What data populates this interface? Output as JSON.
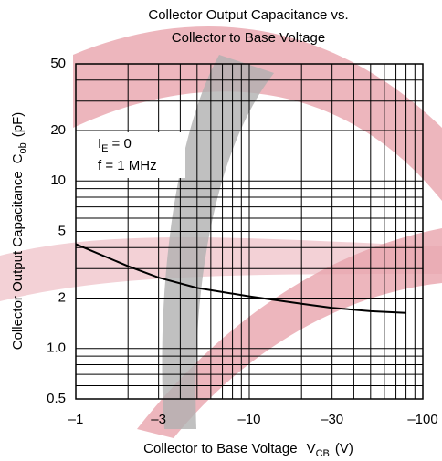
{
  "chart_data": {
    "type": "line",
    "title_lines": [
      "Collector Output Capacitance vs.",
      "Collector to Base Voltage"
    ],
    "x_label": {
      "main": "Collector to Base Voltage",
      "symbol": "V",
      "sub": "CB",
      "unit": "(V)"
    },
    "y_label": {
      "main": "Collector Output Capacitance",
      "symbol": "C",
      "sub": "ob",
      "unit": "(pF)"
    },
    "annotations": [
      {
        "main": "I",
        "sub": "E",
        "tail": "= 0"
      },
      {
        "main": "f = 1 MHz"
      }
    ],
    "x": [
      -1,
      -2,
      -3,
      -5,
      -10,
      -20,
      -30,
      -50,
      -80
    ],
    "series": [
      {
        "color": "#000000",
        "values": [
          4.2,
          3.1,
          2.65,
          2.3,
          2.05,
          1.85,
          1.75,
          1.67,
          1.63
        ]
      }
    ],
    "x_log_magnitude": true,
    "y_log": true,
    "xlim": [
      -1,
      -100
    ],
    "ylim": [
      0.5,
      50
    ],
    "xticks": [
      {
        "value": -1,
        "label": "–1"
      },
      {
        "value": -3,
        "label": "–3"
      },
      {
        "value": -10,
        "label": "–10"
      },
      {
        "value": -30,
        "label": "–30"
      },
      {
        "value": -100,
        "label": "–100"
      }
    ],
    "yticks": [
      0.5,
      {
        "value": 1,
        "label": "1.0"
      },
      2,
      5,
      10,
      20,
      50
    ],
    "x_minor_grid": [
      -2,
      -4,
      -5,
      -6,
      -7,
      -8,
      -9,
      -20,
      -40,
      -50,
      -60,
      -70,
      -80,
      -90
    ],
    "y_minor_grid": [
      0.6,
      0.7,
      0.8,
      0.9,
      3,
      4,
      6,
      7,
      8,
      9,
      30,
      40
    ],
    "grid": true
  }
}
